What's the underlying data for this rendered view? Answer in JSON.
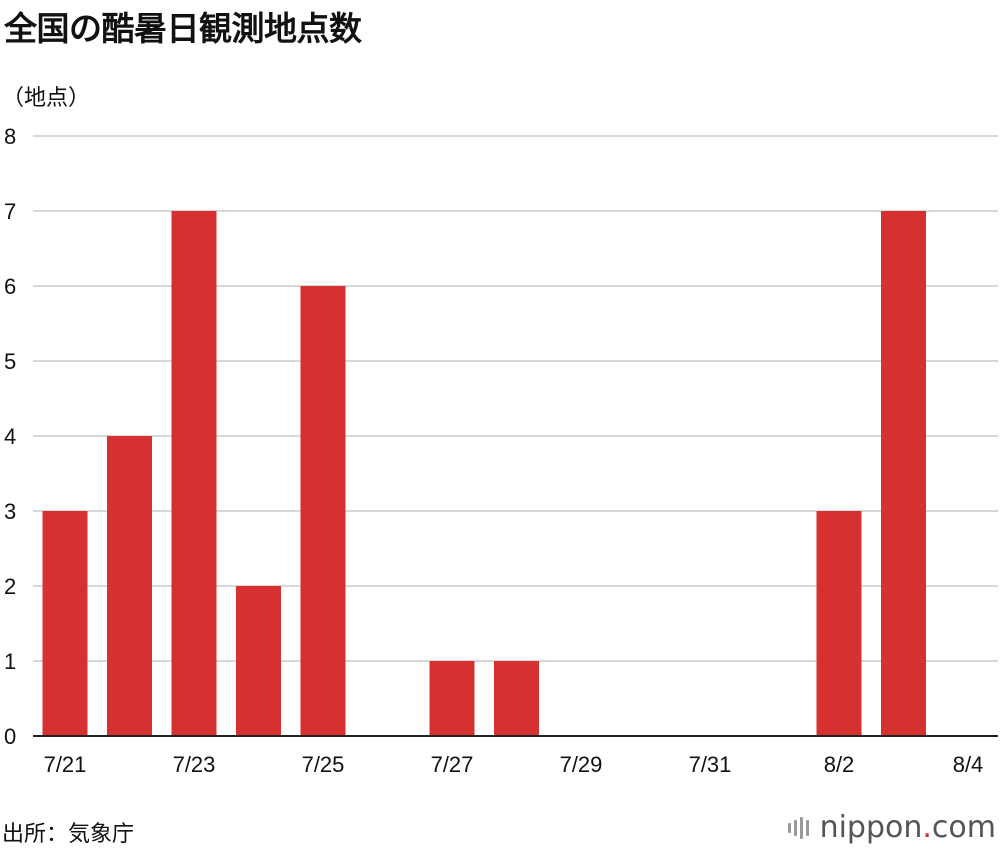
{
  "title": "全国の酷暑日観測地点数",
  "unit_label": "（地点）",
  "source": "出所：気象庁",
  "logo": {
    "brand": "nippon",
    "dot": ".",
    "tld": "com"
  },
  "colors": {
    "bar": "#d63031",
    "grid": "#cccccc",
    "axis": "#222222"
  },
  "chart_data": {
    "type": "bar",
    "categories": [
      "7/21",
      "7/22",
      "7/23",
      "7/24",
      "7/25",
      "7/26",
      "7/27",
      "7/28",
      "7/29",
      "7/30",
      "7/31",
      "8/1",
      "8/2",
      "8/3",
      "8/4"
    ],
    "values": [
      3,
      4,
      7,
      2,
      6,
      0,
      1,
      1,
      0,
      0,
      0,
      0,
      3,
      7,
      0
    ],
    "x_tick_labels": [
      "7/21",
      "",
      "7/23",
      "",
      "7/25",
      "",
      "7/27",
      "",
      "7/29",
      "",
      "7/31",
      "",
      "8/2",
      "",
      "8/4"
    ],
    "y_ticks": [
      0,
      1,
      2,
      3,
      4,
      5,
      6,
      7,
      8
    ],
    "ylim": [
      0,
      8
    ],
    "grid": true,
    "title": "全国の酷暑日観測地点数",
    "ylabel": "（地点）",
    "xlabel": ""
  }
}
